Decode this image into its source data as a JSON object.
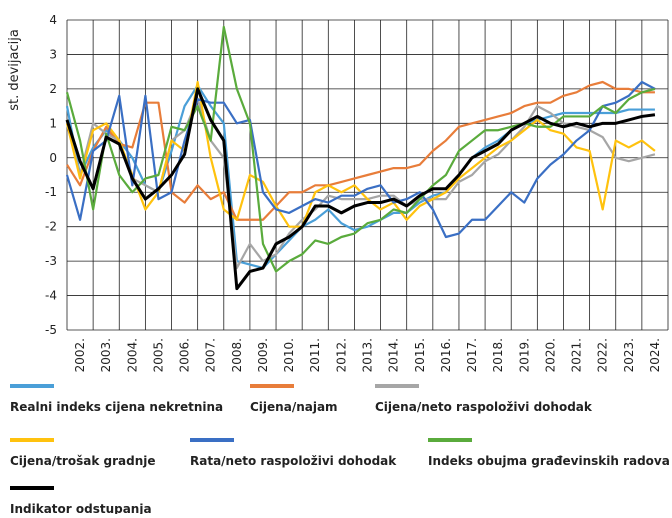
{
  "chart_data": {
    "type": "line",
    "ylabel": "st. devijacija",
    "xlim": [
      2002,
      2025
    ],
    "xticks": [
      {
        "value": 2002,
        "label": "2002."
      },
      {
        "value": 2003,
        "label": "2003."
      },
      {
        "value": 2004,
        "label": "2004."
      },
      {
        "value": 2005,
        "label": "2005."
      },
      {
        "value": 2006,
        "label": "2006."
      },
      {
        "value": 2007,
        "label": "2007."
      },
      {
        "value": 2008,
        "label": "2008."
      },
      {
        "value": 2009,
        "label": "2009."
      },
      {
        "value": 2010,
        "label": "2010."
      },
      {
        "value": 2011,
        "label": "2011."
      },
      {
        "value": 2012,
        "label": "2012."
      },
      {
        "value": 2013,
        "label": "2013."
      },
      {
        "value": 2014,
        "label": "2014."
      },
      {
        "value": 2015,
        "label": "2015."
      },
      {
        "value": 2016,
        "label": "2016."
      },
      {
        "value": 2017,
        "label": "2017."
      },
      {
        "value": 2018,
        "label": "2018."
      },
      {
        "value": 2019,
        "label": "2019."
      },
      {
        "value": 2020,
        "label": "2020."
      },
      {
        "value": 2021,
        "label": "2021."
      },
      {
        "value": 2022,
        "label": "2022."
      },
      {
        "value": 2023,
        "label": "2023."
      },
      {
        "value": 2024,
        "label": "2024."
      }
    ],
    "ylim": [
      -5,
      4
    ],
    "yticks": [
      -5,
      -4,
      -3,
      -2,
      -1,
      0,
      1,
      2,
      3,
      4
    ],
    "grid": true,
    "x": [
      2002,
      2002.5,
      2003,
      2003.5,
      2004,
      2004.5,
      2005,
      2005.5,
      2006,
      2006.5,
      2007,
      2007.5,
      2008,
      2008.5,
      2009,
      2009.5,
      2010,
      2010.5,
      2011,
      2011.5,
      2012,
      2012.5,
      2013,
      2013.5,
      2014,
      2014.5,
      2015,
      2015.5,
      2016,
      2016.5,
      2017,
      2017.5,
      2018,
      2018.5,
      2019,
      2019.5,
      2020,
      2020.5,
      2021,
      2021.5,
      2022,
      2022.5,
      2023,
      2023.5,
      2024,
      2024.5
    ],
    "series": [
      {
        "name": "Realni indeks cijena nekretnina",
        "color": "#4a9fd8",
        "values": [
          1.5,
          -0.5,
          0.3,
          0.8,
          0.5,
          0,
          -0.8,
          -1.0,
          0.2,
          1.5,
          2.1,
          1.5,
          1.0,
          -3.0,
          -3.1,
          -3.2,
          -2.8,
          -2.4,
          -2.0,
          -1.8,
          -1.5,
          -1.9,
          -2.1,
          -2.0,
          -1.8,
          -1.6,
          -1.6,
          -1.3,
          -1.1,
          -1.0,
          -0.5,
          0.0,
          0.3,
          0.5,
          0.8,
          1.0,
          1.1,
          1.2,
          1.3,
          1.3,
          1.3,
          1.3,
          1.3,
          1.4,
          1.4,
          1.4
        ]
      },
      {
        "name": "Cijena/najam",
        "color": "#e87d3a",
        "values": [
          -0.2,
          -0.8,
          0.2,
          0.9,
          0.4,
          0.3,
          1.6,
          1.6,
          -1.0,
          -1.3,
          -0.8,
          -1.2,
          -1.0,
          -1.8,
          -1.8,
          -1.8,
          -1.4,
          -1.0,
          -1.0,
          -0.8,
          -0.8,
          -0.7,
          -0.6,
          -0.5,
          -0.4,
          -0.3,
          -0.3,
          -0.2,
          0.2,
          0.5,
          0.9,
          1.0,
          1.1,
          1.2,
          1.3,
          1.5,
          1.6,
          1.6,
          1.8,
          1.9,
          2.1,
          2.2,
          2.0,
          2.0,
          1.9,
          1.9
        ]
      },
      {
        "name": "Cijena/neto raspoloživi dohodak",
        "color": "#a6a6a6",
        "values": [
          1.0,
          -0.5,
          1.0,
          0.7,
          0.5,
          -0.6,
          -0.8,
          -1.0,
          0.5,
          0.8,
          1.7,
          0.5,
          0.0,
          -3.2,
          -2.5,
          -3.0,
          -2.8,
          -2.2,
          -1.8,
          -1.5,
          -1.1,
          -1.2,
          -1.2,
          -1.2,
          -1.1,
          -1.1,
          -1.4,
          -1.2,
          -1.2,
          -1.2,
          -0.7,
          -0.5,
          -0.1,
          0.1,
          0.5,
          0.9,
          1.5,
          1.3,
          1.0,
          0.9,
          0.8,
          0.6,
          0.0,
          -0.1,
          0.0,
          0.1
        ]
      },
      {
        "name": "Cijena/trošak gradnje",
        "color": "#ffc20e",
        "values": [
          1.0,
          -0.6,
          0.8,
          1.0,
          0.5,
          -0.5,
          -1.5,
          -1.0,
          0.5,
          0.2,
          2.2,
          0.0,
          -1.5,
          -1.8,
          -0.5,
          -0.7,
          -1.4,
          -2.0,
          -2.0,
          -1.0,
          -0.8,
          -1.0,
          -0.8,
          -1.2,
          -1.5,
          -1.3,
          -1.8,
          -1.4,
          -1.2,
          -1.0,
          -0.6,
          -0.3,
          0.0,
          0.3,
          0.5,
          0.8,
          1.1,
          0.8,
          0.7,
          0.3,
          0.2,
          -1.5,
          0.5,
          0.3,
          0.5,
          0.2
        ]
      },
      {
        "name": "Rata/neto raspoloživi dohodak",
        "color": "#3a6fc4",
        "values": [
          -0.5,
          -1.8,
          0.2,
          0.5,
          1.8,
          -0.8,
          1.8,
          -1.2,
          -1.0,
          0.5,
          1.7,
          1.6,
          1.6,
          1.0,
          1.1,
          -1.0,
          -1.5,
          -1.6,
          -1.4,
          -1.2,
          -1.3,
          -1.1,
          -1.1,
          -0.9,
          -0.8,
          -1.3,
          -1.2,
          -1.0,
          -1.5,
          -2.3,
          -2.2,
          -1.8,
          -1.8,
          -1.4,
          -1.0,
          -1.3,
          -0.6,
          -0.2,
          0.1,
          0.5,
          0.8,
          1.5,
          1.6,
          1.8,
          2.2,
          2.0
        ]
      },
      {
        "name": "Indeks obujma građevinskih radova",
        "color": "#5aab3c",
        "values": [
          1.9,
          0.5,
          -1.5,
          0.7,
          -0.5,
          -1.0,
          -0.6,
          -0.5,
          0.9,
          0.8,
          1.5,
          0.5,
          3.8,
          2.0,
          1.0,
          -2.5,
          -3.3,
          -3.0,
          -2.8,
          -2.4,
          -2.5,
          -2.3,
          -2.2,
          -1.9,
          -1.8,
          -1.5,
          -1.6,
          -1.2,
          -0.8,
          -0.5,
          0.2,
          0.5,
          0.8,
          0.8,
          0.9,
          1.0,
          0.9,
          0.9,
          1.2,
          1.2,
          1.2,
          1.5,
          1.3,
          1.7,
          1.9,
          2.0
        ]
      },
      {
        "name": "Indikator odstupanja",
        "color": "#000000",
        "values": [
          1.1,
          -0.1,
          -0.9,
          0.6,
          0.4,
          -0.6,
          -1.2,
          -0.9,
          -0.5,
          0.1,
          2.0,
          1.1,
          0.5,
          -3.8,
          -3.3,
          -3.2,
          -2.5,
          -2.3,
          -2.0,
          -1.4,
          -1.4,
          -1.6,
          -1.4,
          -1.3,
          -1.3,
          -1.2,
          -1.4,
          -1.1,
          -0.9,
          -0.9,
          -0.5,
          0.0,
          0.2,
          0.4,
          0.8,
          1.0,
          1.2,
          1.0,
          0.9,
          1.0,
          0.9,
          1.0,
          1.0,
          1.1,
          1.2,
          1.25
        ]
      }
    ]
  }
}
